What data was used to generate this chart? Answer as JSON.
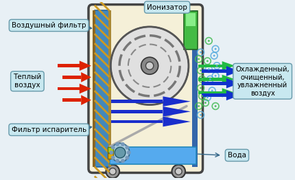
{
  "bg_color": "#e8f0f5",
  "unit_fill": "#f5f0d8",
  "unit_border": "#555555",
  "ionizer_color": "#44bb44",
  "water_color": "#55aaee",
  "label_box_color": "#c8e8f0",
  "label_box_edge": "#6699aa",
  "labels": {
    "ionizator": "Ионизатор",
    "vozdushny_filtr": "Воздушный фильтр",
    "teply_vozduh": "Теплый\nвоздух",
    "filtr_isparitel": "Фильтр испаритель",
    "voda": "Вода",
    "output_air": "Охлажденный,\nочищенный,\nувлажненный\nвоздух"
  }
}
